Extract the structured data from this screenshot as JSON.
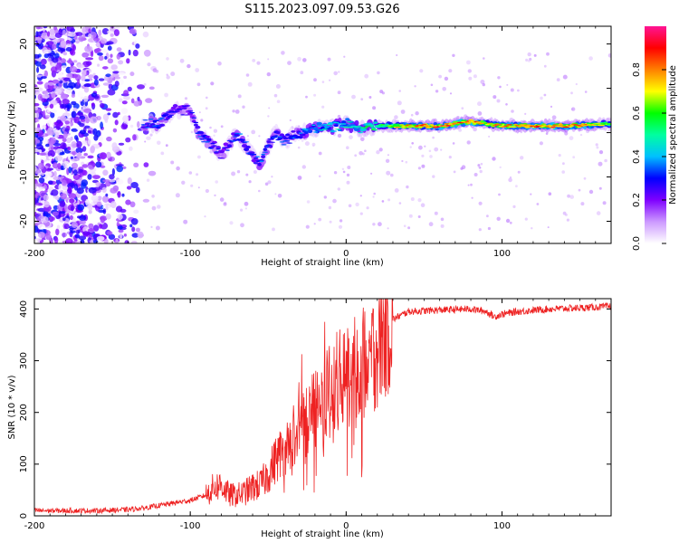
{
  "figure": {
    "title": "S115.2023.097.09.53.G26"
  },
  "chart_data": [
    {
      "type": "heatmap",
      "title": "S115.2023.097.09.53.G26",
      "xlabel": "Height of straight line (km)",
      "ylabel": "Frequency (Hz)",
      "xlim": [
        -200,
        170
      ],
      "ylim": [
        -25,
        24
      ],
      "x_ticks": [
        -200,
        -100,
        0,
        100
      ],
      "x_tick_labels": [
        "-200",
        "-100",
        "0",
        "100"
      ],
      "y_ticks": [
        -20,
        -10,
        0,
        10,
        20
      ],
      "y_tick_labels": [
        "-20",
        "-10",
        "0",
        "10",
        "20"
      ],
      "colorbar": {
        "label": "Normalized spectral amplitude",
        "range": [
          0,
          1
        ],
        "ticks": [
          0.0,
          0.2,
          0.4,
          0.6,
          0.8
        ],
        "tick_labels": [
          "0.0",
          "0.2",
          "0.4",
          "0.6",
          "0.8"
        ],
        "colors": [
          "#ffffff",
          "#cc99ff",
          "#7f00ff",
          "#0000ff",
          "#00c0ff",
          "#00ffa0",
          "#00ff00",
          "#ffff00",
          "#ff8000",
          "#ff0000",
          "#ff1493"
        ]
      },
      "ridge": [
        {
          "x": -130,
          "y": 2,
          "amp": 0.3
        },
        {
          "x": -120,
          "y": 2,
          "amp": 0.35
        },
        {
          "x": -110,
          "y": 5,
          "amp": 0.3
        },
        {
          "x": -100,
          "y": 5,
          "amp": 0.25
        },
        {
          "x": -95,
          "y": 0,
          "amp": 0.35
        },
        {
          "x": -85,
          "y": -3,
          "amp": 0.3
        },
        {
          "x": -80,
          "y": -5,
          "amp": 0.25
        },
        {
          "x": -70,
          "y": 0,
          "amp": 0.35
        },
        {
          "x": -60,
          "y": -5,
          "amp": 0.3
        },
        {
          "x": -55,
          "y": -7,
          "amp": 0.35
        },
        {
          "x": -50,
          "y": -3,
          "amp": 0.3
        },
        {
          "x": -45,
          "y": 0,
          "amp": 0.35
        },
        {
          "x": -40,
          "y": -2,
          "amp": 0.3
        },
        {
          "x": -30,
          "y": 0,
          "amp": 0.35
        },
        {
          "x": -20,
          "y": 1,
          "amp": 0.4
        },
        {
          "x": -10,
          "y": 1,
          "amp": 0.45
        },
        {
          "x": 0,
          "y": 2,
          "amp": 0.45
        },
        {
          "x": 10,
          "y": 1,
          "amp": 0.5
        },
        {
          "x": 20,
          "y": 1.5,
          "amp": 0.55
        },
        {
          "x": 40,
          "y": 1.5,
          "amp": 0.75
        },
        {
          "x": 60,
          "y": 1.5,
          "amp": 0.85
        },
        {
          "x": 80,
          "y": 2.5,
          "amp": 0.85
        },
        {
          "x": 90,
          "y": 2,
          "amp": 0.7
        },
        {
          "x": 100,
          "y": 1.5,
          "amp": 0.75
        },
        {
          "x": 120,
          "y": 1.5,
          "amp": 0.8
        },
        {
          "x": 140,
          "y": 1.5,
          "amp": 0.85
        },
        {
          "x": 160,
          "y": 1.8,
          "amp": 0.75
        },
        {
          "x": 170,
          "y": 2,
          "amp": 0.6
        }
      ]
    },
    {
      "type": "line",
      "xlabel": "Height of straight line (km)",
      "ylabel": "SNR (10 * v/v)",
      "xlim": [
        -200,
        170
      ],
      "ylim": [
        0,
        420
      ],
      "x_ticks": [
        -200,
        -100,
        0,
        100
      ],
      "x_tick_labels": [
        "-200",
        "-100",
        "0",
        "100"
      ],
      "y_ticks": [
        0,
        100,
        200,
        300,
        400
      ],
      "y_tick_labels": [
        "0",
        "100",
        "200",
        "300",
        "400"
      ],
      "color": "#ee2222",
      "series": [
        {
          "x": [
            -200,
            -180,
            -160,
            -140,
            -130,
            -120,
            -110,
            -100,
            -95,
            -90,
            -85,
            -80,
            -75,
            -70,
            -65,
            -60,
            -55,
            -50,
            -45,
            -40,
            -35,
            -30,
            -25,
            -20,
            -15,
            -10,
            -5,
            0,
            5,
            10,
            15,
            20,
            25,
            30,
            40,
            60,
            80,
            90,
            95,
            100,
            110,
            130,
            150,
            170
          ],
          "y": [
            10,
            10,
            10,
            12,
            15,
            20,
            25,
            30,
            35,
            40,
            55,
            60,
            40,
            40,
            45,
            55,
            60,
            80,
            110,
            130,
            150,
            170,
            190,
            210,
            220,
            240,
            260,
            270,
            280,
            290,
            300,
            330,
            360,
            380,
            395,
            398,
            400,
            395,
            385,
            390,
            395,
            400,
            402,
            405
          ]
        }
      ]
    }
  ]
}
